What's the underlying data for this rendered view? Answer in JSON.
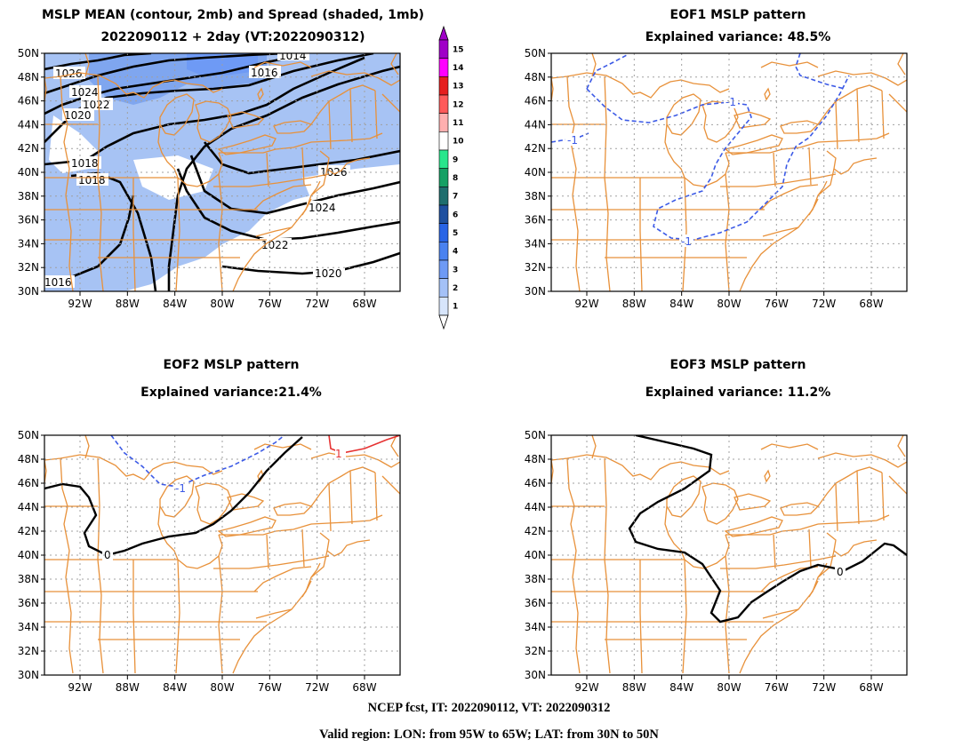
{
  "panels": {
    "mean": {
      "title1": "MSLP MEAN (contour, 2mb) and Spread (shaded, 1mb)",
      "title2": "2022090112 + 2day (VT:2022090312)"
    },
    "eof1": {
      "title1": "EOF1 MSLP pattern",
      "title2": "Explained variance: 48.5%"
    },
    "eof2": {
      "title1": "EOF2 MSLP pattern",
      "title2": "Explained variance:21.4%"
    },
    "eof3": {
      "title1": "EOF3 MSLP pattern",
      "title2": "Explained variance: 11.2%"
    }
  },
  "footer": {
    "line1": "NCEP fcst, IT: 2022090112, VT: 2022090312",
    "line2": "Valid region: LON: from 95W to 65W; LAT: from 30N to 50N"
  },
  "axes": {
    "lat_labels": [
      "50N",
      "48N",
      "46N",
      "44N",
      "42N",
      "40N",
      "38N",
      "36N",
      "34N",
      "32N",
      "30N"
    ],
    "lon_labels": [
      "92W",
      "88W",
      "84W",
      "80W",
      "76W",
      "72W",
      "68W"
    ],
    "lon_values": [
      -92,
      -88,
      -84,
      -80,
      -76,
      -72,
      -68
    ],
    "lat_values": [
      50,
      48,
      46,
      44,
      42,
      40,
      38,
      36,
      34,
      32,
      30
    ],
    "lon_range": [
      -95,
      -65
    ],
    "lat_range": [
      30,
      50
    ],
    "grid": true
  },
  "colorbar": {
    "labels": [
      "15",
      "14",
      "13",
      "12",
      "11",
      "10",
      "9",
      "8",
      "7",
      "6",
      "5",
      "4",
      "3",
      "2",
      "1"
    ],
    "colors": [
      "#a000c8",
      "#ff00ff",
      "#e61e1e",
      "#ff5a5a",
      "#ffafaf",
      "#ffffff",
      "#28e68c",
      "#14a064",
      "#1e6e6e",
      "#1e50a0",
      "#2864e6",
      "#4a82f0",
      "#6e9af5",
      "#a4c1f7",
      "#d7e5fb"
    ]
  },
  "mean_contour_labels": [
    "1026",
    "1024",
    "1022",
    "1020",
    "1018",
    "1018",
    "1016",
    "1014",
    "1016",
    "1026",
    "1024",
    "1022",
    "1020"
  ],
  "eof1_labels": [
    "-1",
    "-1",
    "-1"
  ],
  "eof2_labels": [
    "0",
    "-1",
    "1"
  ],
  "eof3_labels": [
    "0"
  ],
  "colors": {
    "coast": "#e8913a",
    "grid": "#a0a0a0",
    "contour": "#000000",
    "negative": "#3c5ae6",
    "positive": "#e63232",
    "shade_light": "#a7c3f4",
    "shade_dark": "#7fa6ef"
  }
}
